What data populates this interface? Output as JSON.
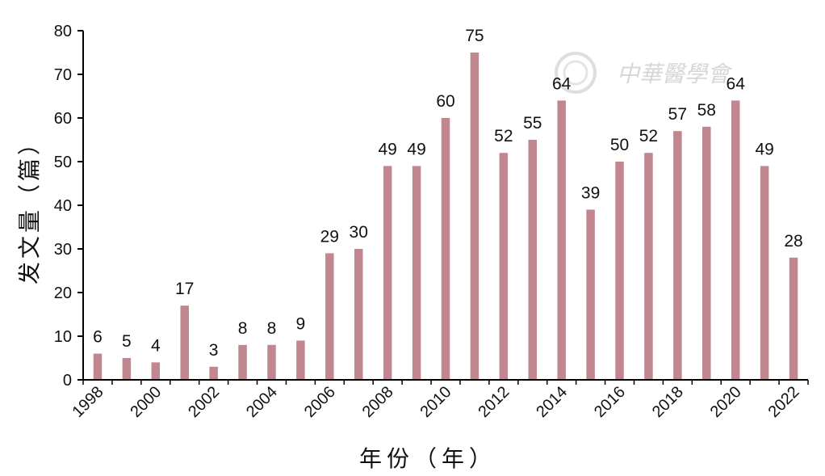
{
  "chart_data": {
    "type": "bar",
    "categories": [
      "1998",
      "1999",
      "2000",
      "2001",
      "2002",
      "2003",
      "2004",
      "2005",
      "2006",
      "2007",
      "2008",
      "2009",
      "2010",
      "2011",
      "2012",
      "2013",
      "2014",
      "2015",
      "2016",
      "2017",
      "2018",
      "2019",
      "2020",
      "2021",
      "2022"
    ],
    "x_tick_labels": [
      "1998",
      "2000",
      "2002",
      "2004",
      "2006",
      "2008",
      "2010",
      "2012",
      "2014",
      "2016",
      "2018",
      "2020",
      "2022"
    ],
    "values": [
      6,
      5,
      4,
      17,
      3,
      8,
      8,
      9,
      29,
      30,
      49,
      49,
      60,
      75,
      52,
      55,
      64,
      39,
      50,
      52,
      57,
      58,
      64,
      49,
      28
    ],
    "data_labels": [
      "6",
      "5",
      "4",
      "17",
      "3",
      "8",
      "8",
      "9",
      "29",
      "30",
      "49",
      "49",
      "60",
      "75",
      "52",
      "55",
      "64",
      "39",
      "50",
      "52",
      "57",
      "58",
      "64",
      "49",
      "28"
    ],
    "y_ticks": [
      "0",
      "10",
      "20",
      "30",
      "40",
      "50",
      "60",
      "70",
      "80"
    ],
    "ylim": [
      0,
      80
    ],
    "xlabel": "年份（年）",
    "ylabel": "发文量（篇）",
    "bar_color": "#c0878f",
    "grid": false,
    "watermark_text": "中華醫學會"
  }
}
